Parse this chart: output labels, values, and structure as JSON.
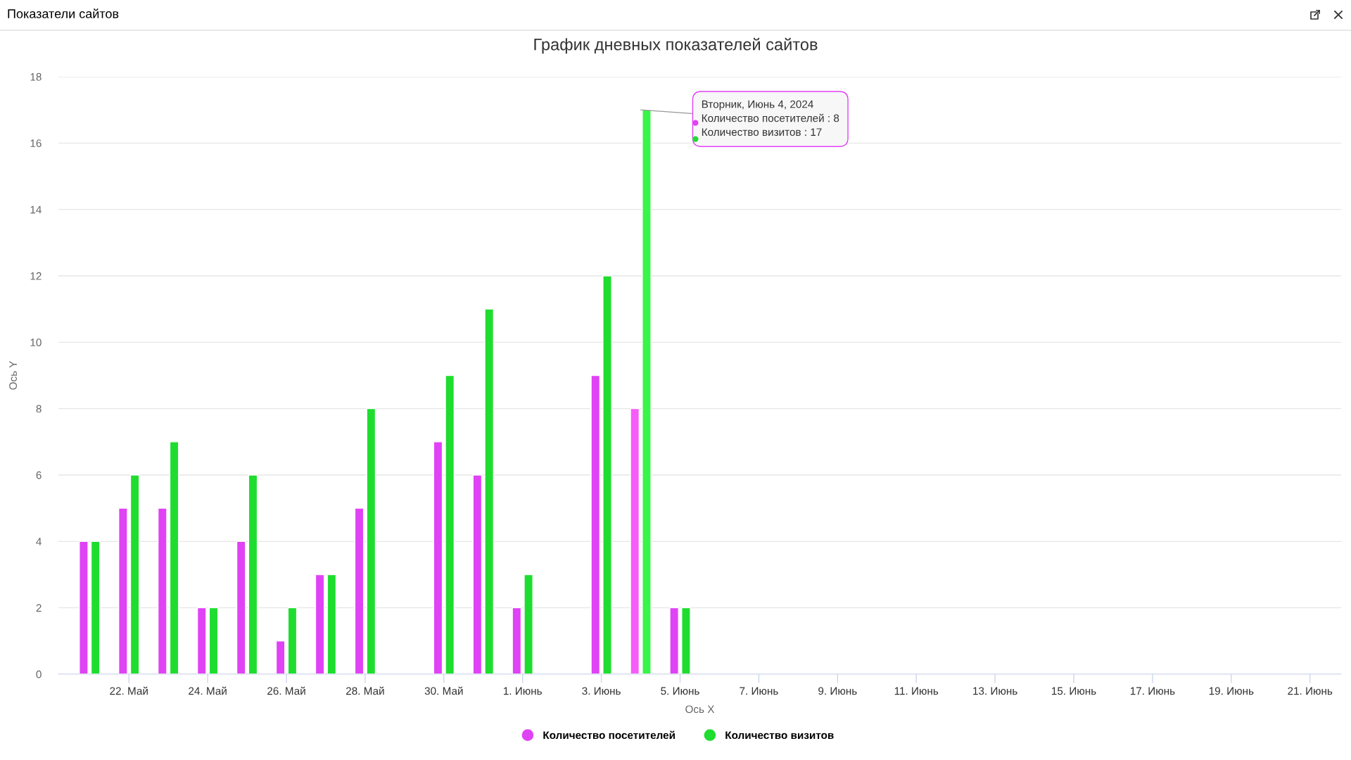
{
  "chart_data": {
    "type": "bar",
    "title": "График дневных показателей сайтов",
    "xlabel": "Ось X",
    "ylabel": "Ось Y",
    "x": [
      "2024-05-21",
      "2024-05-22",
      "2024-05-23",
      "2024-05-24",
      "2024-05-25",
      "2024-05-26",
      "2024-05-27",
      "2024-05-28",
      "2024-05-30",
      "2024-05-31",
      "2024-06-01",
      "2024-06-03",
      "2024-06-04",
      "2024-06-05"
    ],
    "series": [
      {
        "name": "Количество посетителей",
        "color": "#e042f5",
        "colors": [
          "#e042f5",
          "#e042f5",
          "#e042f5",
          "#e042f5",
          "#e042f5",
          "#e042f5",
          "#e042f5",
          "#e042f5",
          "#e042f5",
          "#e042f5",
          "#e042f5",
          "#e042f5",
          "#f75cf9",
          "#e042f5"
        ],
        "values": [
          4,
          5,
          5,
          2,
          4,
          1,
          3,
          5,
          7,
          6,
          2,
          9,
          8,
          2
        ]
      },
      {
        "name": "Количество визитов",
        "color": "#1fdd2f",
        "colors": [
          "#1fdd2f",
          "#1fdd2f",
          "#1fdd2f",
          "#1fdd2f",
          "#1fdd2f",
          "#1fdd2f",
          "#1fdd2f",
          "#1fdd2f",
          "#1fdd2f",
          "#1fdd2f",
          "#1fdd2f",
          "#1fdd2f",
          "#38f548",
          "#1fdd2f"
        ],
        "values": [
          4,
          6,
          7,
          2,
          6,
          2,
          3,
          8,
          9,
          11,
          3,
          12,
          17,
          2
        ]
      }
    ],
    "xlim": [
      "2024-05-20T05:00",
      "2024-06-21T19:00"
    ],
    "xticks": [
      {
        "value": "2024-05-22",
        "label": "22. Май"
      },
      {
        "value": "2024-05-24",
        "label": "24. Май"
      },
      {
        "value": "2024-05-26",
        "label": "26. Май"
      },
      {
        "value": "2024-05-28",
        "label": "28. Май"
      },
      {
        "value": "2024-05-30",
        "label": "30. Май"
      },
      {
        "value": "2024-06-01",
        "label": "1. Июнь"
      },
      {
        "value": "2024-06-03",
        "label": "3. Июнь"
      },
      {
        "value": "2024-06-05",
        "label": "5. Июнь"
      },
      {
        "value": "2024-06-07",
        "label": "7. Июнь"
      },
      {
        "value": "2024-06-09",
        "label": "9. Июнь"
      },
      {
        "value": "2024-06-11",
        "label": "11. Июнь"
      },
      {
        "value": "2024-06-13",
        "label": "13. Июнь"
      },
      {
        "value": "2024-06-15",
        "label": "15. Июнь"
      },
      {
        "value": "2024-06-17",
        "label": "17. Июнь"
      },
      {
        "value": "2024-06-19",
        "label": "19. Июнь"
      },
      {
        "value": "2024-06-21",
        "label": "21. Июнь"
      }
    ],
    "ylim": [
      0,
      18
    ],
    "yticks": [
      0,
      2,
      4,
      6,
      8,
      10,
      12,
      14,
      16,
      18
    ],
    "grid": "y",
    "legend": "bottom",
    "annotations": [
      "Показатели сайтов",
      {
        "text": "Вторник, Июнь 4, 2024\nКоличество посетителей : 8\nКоличество визитов : 17",
        "x": "2024-06-04",
        "y": 17
      }
    ]
  }
}
